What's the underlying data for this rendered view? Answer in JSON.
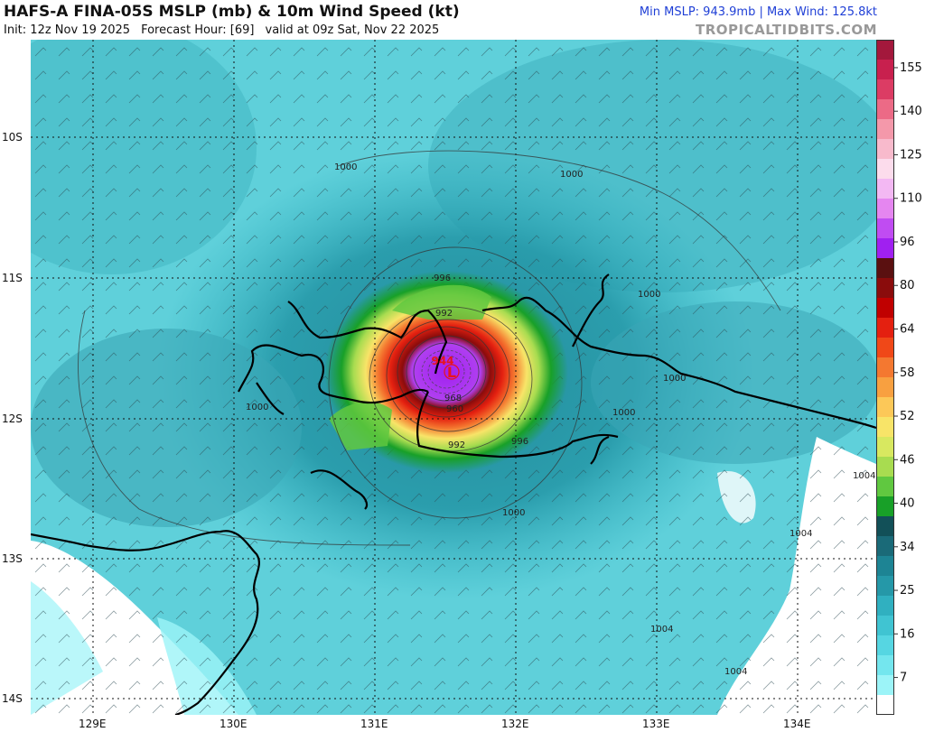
{
  "header": {
    "title": "HAFS-A FINA-05S MSLP (mb) & 10m Wind Speed (kt)",
    "init": "Init: 12z Nov 19 2025",
    "forecast_hour": "Forecast Hour: [69]",
    "valid": "valid at 09z Sat, Nov 22 2025",
    "stats": "Min MSLP: 943.9mb | Max Wind: 125.8kt",
    "brand": "TROPICALTIDBITS.COM"
  },
  "axes": {
    "x_ticks": [
      "129E",
      "130E",
      "131E",
      "132E",
      "133E",
      "134E"
    ],
    "y_ticks": [
      "10S",
      "11S",
      "12S",
      "13S",
      "14S"
    ]
  },
  "storm": {
    "center_symbol": "L",
    "center_label": "944",
    "min_mslp_mb": 943.9,
    "max_wind_kt": 125.8
  },
  "isobar_labels": [
    "1000",
    "1000",
    "1000",
    "1000",
    "1000",
    "1000",
    "1000",
    "996",
    "996",
    "992",
    "992",
    "968",
    "960",
    "1004",
    "1004",
    "1004",
    "1004"
  ],
  "colorbar": {
    "labels": [
      "155",
      "140",
      "125",
      "110",
      "96",
      "80",
      "64",
      "58",
      "52",
      "46",
      "40",
      "34",
      "25",
      "16",
      "7"
    ],
    "colors": [
      "#a3183c",
      "#c8204e",
      "#dc3c64",
      "#ec6a86",
      "#f498aa",
      "#f8bacc",
      "#fcdcec",
      "#f3b8f3",
      "#e586f0",
      "#c04cf2",
      "#a020f0",
      "#5a1010",
      "#8a0c0c",
      "#c00000",
      "#e42010",
      "#f04818",
      "#f47830",
      "#f8a040",
      "#fcc858",
      "#f8e468",
      "#d8e860",
      "#a8dc50",
      "#60c840",
      "#18a028",
      "#125058",
      "#1a6a78",
      "#1d8494",
      "#2598a8",
      "#30b0c0",
      "#40c4d2",
      "#56d6e2",
      "#74e6ee",
      "#9cf4f8",
      "#ffffff"
    ]
  }
}
